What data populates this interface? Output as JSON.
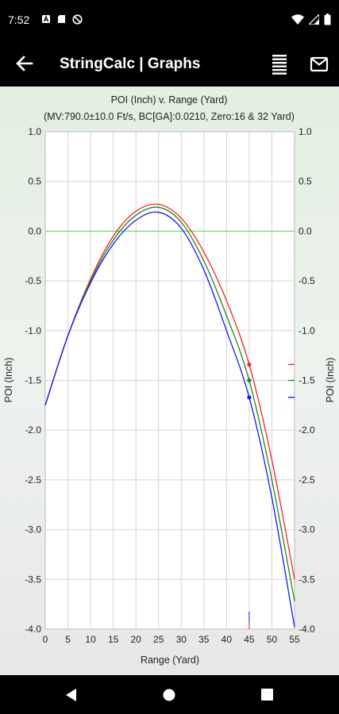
{
  "status_bar": {
    "time": "7:52"
  },
  "app_bar": {
    "title": "StringCalc | Graphs"
  },
  "icons": {
    "back": "arrow-back-icon",
    "menu": "list-menu-icon",
    "mail": "mail-icon"
  },
  "chart_data": {
    "type": "line",
    "title": "POI (Inch) v. Range (Yard)",
    "subtitle": "(MV:790.0±10.0 Ft/s, BC[GA]:0.0210, Zero:16 & 32 Yard)",
    "xlabel": "Range (Yard)",
    "ylabel": "POI (Inch)",
    "xlim": [
      0,
      55
    ],
    "ylim": [
      -4.0,
      1.0
    ],
    "x_ticks": [
      "0",
      "5",
      "10",
      "15",
      "20",
      "25",
      "30",
      "35",
      "40",
      "45",
      "50",
      "55"
    ],
    "y_ticks": [
      "1.0",
      "0.5",
      "0.0",
      "-0.5",
      "-1.0",
      "-1.5",
      "-2.0",
      "-2.5",
      "-3.0",
      "-3.5",
      "-4.0"
    ],
    "y_ticks_right": [
      "1.0",
      "0.5",
      "0.0",
      "-0.5",
      "-1.0",
      "-1.5",
      "-2.0",
      "-2.5",
      "-3.0",
      "-3.5",
      "-4.0"
    ],
    "zero_line": 0.0,
    "marker_range": 45,
    "series": [
      {
        "color": "#ff2020",
        "x": [
          0,
          5,
          10,
          15,
          20,
          25,
          30,
          35,
          40,
          45,
          50,
          55
        ],
        "y": [
          -1.75,
          -1.05,
          -0.48,
          -0.05,
          0.2,
          0.27,
          0.13,
          -0.21,
          -0.7,
          -1.34,
          -2.3,
          -3.5
        ]
      },
      {
        "color": "#1a8a1a",
        "x": [
          0,
          5,
          10,
          15,
          20,
          25,
          30,
          35,
          40,
          45,
          50,
          55
        ],
        "y": [
          -1.75,
          -1.05,
          -0.5,
          -0.09,
          0.16,
          0.24,
          0.09,
          -0.3,
          -0.85,
          -1.5,
          -2.5,
          -3.72
        ]
      },
      {
        "color": "#1515ff",
        "x": [
          0,
          5,
          10,
          15,
          20,
          25,
          30,
          35,
          40,
          45,
          50,
          55
        ],
        "y": [
          -1.75,
          -1.05,
          -0.52,
          -0.13,
          0.11,
          0.19,
          0.03,
          -0.39,
          -1.0,
          -1.67,
          -2.68,
          -3.98
        ]
      }
    ]
  }
}
